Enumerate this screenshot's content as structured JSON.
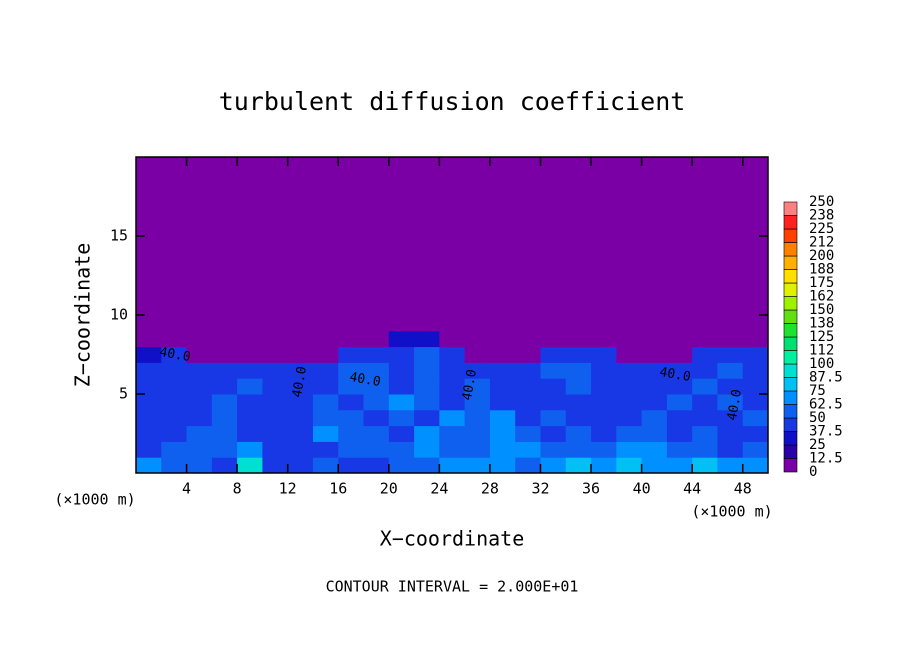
{
  "chart_data": {
    "type": "heatmap",
    "title": "turbulent diffusion coefficient",
    "xlabel": "X−coordinate",
    "ylabel": "Z−coordinate",
    "xlabel_unit": "(×1000 m)",
    "ylabel_unit": "(×1000 m)",
    "footer": "CONTOUR INTERVAL = 2.000E+01",
    "contour_labels": [
      "40.0",
      "40.0",
      "40.0",
      "40.0",
      "40.0",
      "40.0"
    ],
    "xlim": [
      0,
      50
    ],
    "ylim": [
      0,
      20
    ],
    "xticks": [
      4,
      8,
      12,
      16,
      20,
      24,
      28,
      32,
      36,
      40,
      44,
      48
    ],
    "yticks": [
      5,
      10,
      15
    ],
    "x": [
      1,
      3,
      5,
      7,
      9,
      11,
      13,
      15,
      17,
      19,
      21,
      23,
      25,
      27,
      29,
      31,
      33,
      35,
      37,
      39,
      41,
      43,
      45,
      47,
      49
    ],
    "y": [
      0.5,
      1.5,
      2.5,
      3.5,
      4.5,
      5.5,
      6.5,
      7.5,
      8.5,
      9.5,
      10.5,
      11.5,
      12.5,
      13.5,
      14.5,
      15.5,
      16.5,
      17.5,
      18.5,
      19.5
    ],
    "z": [
      [
        70,
        55,
        62,
        45,
        88,
        40,
        45,
        50,
        40,
        45,
        55,
        60,
        70,
        65,
        72,
        60,
        70,
        75,
        72,
        80,
        70,
        65,
        75,
        72,
        70
      ],
      [
        45,
        60,
        55,
        50,
        65,
        40,
        42,
        48,
        55,
        62,
        50,
        70,
        60,
        55,
        65,
        72,
        55,
        60,
        50,
        68,
        70,
        60,
        55,
        45,
        50
      ],
      [
        40,
        45,
        50,
        60,
        45,
        40,
        45,
        65,
        60,
        50,
        45,
        65,
        55,
        60,
        70,
        55,
        45,
        60,
        45,
        55,
        50,
        45,
        50,
        45,
        45
      ],
      [
        42,
        48,
        40,
        55,
        45,
        42,
        40,
        55,
        62,
        45,
        60,
        45,
        70,
        50,
        65,
        45,
        50,
        42,
        40,
        45,
        55,
        45,
        42,
        48,
        60
      ],
      [
        40,
        45,
        42,
        50,
        45,
        40,
        42,
        60,
        45,
        50,
        65,
        55,
        45,
        62,
        45,
        40,
        42,
        45,
        48,
        40,
        45,
        50,
        45,
        55,
        45
      ],
      [
        45,
        40,
        42,
        45,
        55,
        42,
        40,
        45,
        55,
        60,
        45,
        50,
        45,
        55,
        40,
        42,
        45,
        55,
        45,
        42,
        40,
        45,
        60,
        45,
        40
      ],
      [
        40,
        42,
        40,
        45,
        40,
        38,
        40,
        45,
        50,
        55,
        45,
        50,
        48,
        42,
        40,
        45,
        50,
        62,
        45,
        40,
        42,
        40,
        45,
        50,
        42
      ],
      [
        35,
        40,
        0,
        0,
        0,
        0,
        0,
        0,
        45,
        40,
        45,
        50,
        45,
        0,
        0,
        0,
        45,
        40,
        42,
        0,
        0,
        0,
        40,
        45,
        40
      ],
      [
        0,
        0,
        0,
        0,
        0,
        0,
        0,
        0,
        0,
        0,
        35,
        35,
        0,
        0,
        0,
        0,
        0,
        0,
        0,
        0,
        0,
        0,
        0,
        0,
        0
      ],
      [
        0,
        0,
        0,
        0,
        0,
        0,
        0,
        0,
        0,
        0,
        0,
        0,
        0,
        0,
        0,
        0,
        0,
        0,
        0,
        0,
        0,
        0,
        0,
        0,
        0
      ],
      [
        0,
        0,
        0,
        0,
        0,
        0,
        0,
        0,
        0,
        0,
        0,
        0,
        0,
        0,
        0,
        0,
        0,
        0,
        0,
        0,
        0,
        0,
        0,
        0,
        0
      ],
      [
        0,
        0,
        0,
        0,
        0,
        0,
        0,
        0,
        0,
        0,
        0,
        0,
        0,
        0,
        0,
        0,
        0,
        0,
        0,
        0,
        0,
        0,
        0,
        0,
        0
      ],
      [
        0,
        0,
        0,
        0,
        0,
        0,
        0,
        0,
        0,
        0,
        0,
        0,
        0,
        0,
        0,
        0,
        0,
        0,
        0,
        0,
        0,
        0,
        0,
        0,
        0
      ],
      [
        0,
        0,
        0,
        0,
        0,
        0,
        0,
        0,
        0,
        0,
        0,
        0,
        0,
        0,
        0,
        0,
        0,
        0,
        0,
        0,
        0,
        0,
        0,
        0,
        0
      ],
      [
        0,
        0,
        0,
        0,
        0,
        0,
        0,
        0,
        0,
        0,
        0,
        0,
        0,
        0,
        0,
        0,
        0,
        0,
        0,
        0,
        0,
        0,
        0,
        0,
        0
      ],
      [
        0,
        0,
        0,
        0,
        0,
        0,
        0,
        0,
        0,
        0,
        0,
        0,
        0,
        0,
        0,
        0,
        0,
        0,
        0,
        0,
        0,
        0,
        0,
        0,
        0
      ],
      [
        0,
        0,
        0,
        0,
        0,
        0,
        0,
        0,
        0,
        0,
        0,
        0,
        0,
        0,
        0,
        0,
        0,
        0,
        0,
        0,
        0,
        0,
        0,
        0,
        0
      ],
      [
        0,
        0,
        0,
        0,
        0,
        0,
        0,
        0,
        0,
        0,
        0,
        0,
        0,
        0,
        0,
        0,
        0,
        0,
        0,
        0,
        0,
        0,
        0,
        0,
        0
      ],
      [
        0,
        0,
        0,
        0,
        0,
        0,
        0,
        0,
        0,
        0,
        0,
        0,
        0,
        0,
        0,
        0,
        0,
        0,
        0,
        0,
        0,
        0,
        0,
        0,
        0
      ],
      [
        0,
        0,
        0,
        0,
        0,
        0,
        0,
        0,
        0,
        0,
        0,
        0,
        0,
        0,
        0,
        0,
        0,
        0,
        0,
        0,
        0,
        0,
        0,
        0,
        0
      ]
    ],
    "colorbar_levels": [
      0,
      12.5,
      25,
      37.5,
      50,
      62.5,
      75,
      87.5,
      100,
      112,
      125,
      138,
      150,
      162,
      175,
      188,
      200,
      212,
      225,
      238,
      250
    ],
    "colors": [
      "#7a00a6",
      "#2a00a8",
      "#1010c8",
      "#1838e6",
      "#1060f0",
      "#0090ff",
      "#00c0f4",
      "#00e0d0",
      "#00f0a0",
      "#00e070",
      "#20e030",
      "#60e010",
      "#a0f000",
      "#e0f000",
      "#ffe000",
      "#ffb000",
      "#ff8000",
      "#ff4000",
      "#ff2020",
      "#ff8080"
    ]
  }
}
